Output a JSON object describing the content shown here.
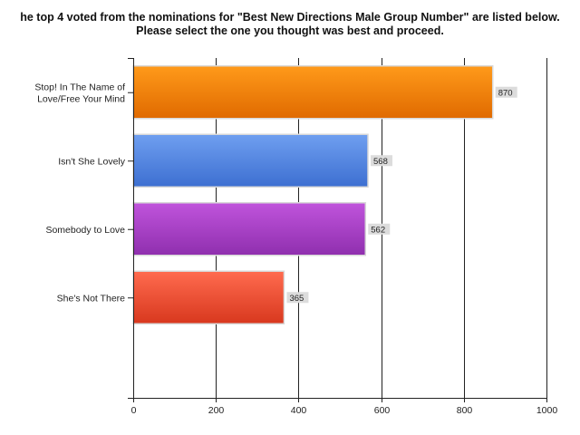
{
  "chart_data": {
    "type": "bar",
    "orientation": "horizontal",
    "title": "he top 4 voted from the nominations for \"Best New Directions Male Group Number\" are listed below. Please select the one you thought was best and proceed.",
    "categories": [
      [
        "Stop! In The Name of",
        "Love/Free Your Mind"
      ],
      [
        "Isn't She Lovely"
      ],
      [
        "Somebody to Love"
      ],
      [
        "She's Not There"
      ]
    ],
    "values": [
      870,
      568,
      562,
      365
    ],
    "value_labels": [
      "870",
      "568",
      "562",
      "365"
    ],
    "bar_colors": [
      [
        "#ff9a1a",
        "#e06a00"
      ],
      [
        "#6f9ff0",
        "#3d6fd1"
      ],
      [
        "#c054dc",
        "#8f2fae"
      ],
      [
        "#ff6b4f",
        "#d8381e"
      ]
    ],
    "xlim": [
      0,
      1000
    ],
    "xticks": [
      0,
      200,
      400,
      600,
      800,
      1000
    ],
    "xtick_labels": [
      "0",
      "200",
      "400",
      "600",
      "800",
      "1000"
    ],
    "grid": "vertical",
    "legend": "none"
  }
}
